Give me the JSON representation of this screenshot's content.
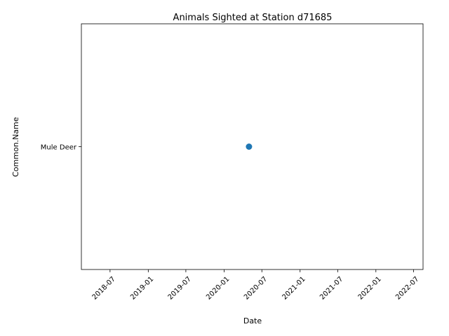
{
  "chart_data": {
    "type": "scatter",
    "title": "Animals Sighted at Station d71685",
    "xlabel": "Date",
    "ylabel": "Common.Name",
    "x_ticks": [
      "2018-07",
      "2019-01",
      "2019-07",
      "2020-01",
      "2020-07",
      "2021-01",
      "2021-07",
      "2022-01",
      "2022-07"
    ],
    "y_categories": [
      "Mule Deer"
    ],
    "xlim": [
      "2018-02-13",
      "2022-08-16"
    ],
    "grid": false,
    "legend": "none",
    "points": [
      {
        "x": "2020-04-30",
        "y": "Mule Deer"
      }
    ],
    "colors": {
      "marker": "#1f77b4",
      "axes": "#000000",
      "background": "#ffffff"
    }
  }
}
